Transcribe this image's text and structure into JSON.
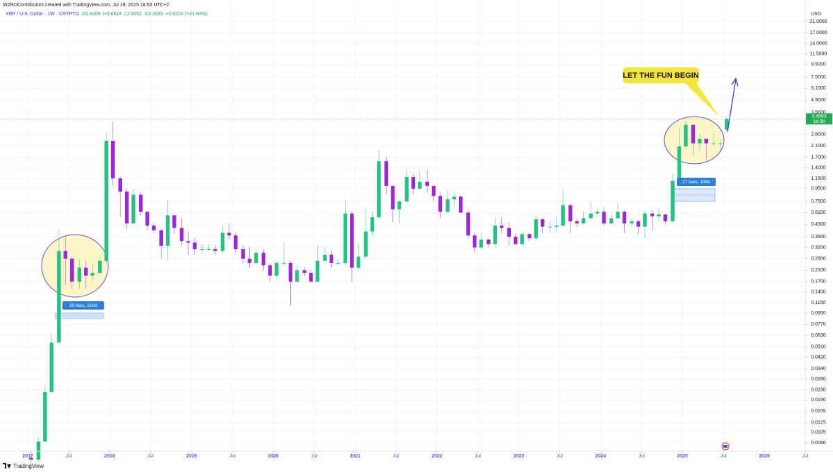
{
  "chart_data": {
    "type": "candlestick",
    "header": "WZRDContributors created with TradingView.com, Jul 19, 2025 18:50 UTC+2",
    "legend": {
      "symbol": "XRP / U.S. Dollar · 1W · CRYPTO",
      "values": [
        "O2.8369",
        "H3.6614",
        "L2.8052",
        "C3.4593",
        "+0.6224 (+21.94%)"
      ]
    },
    "colors": {
      "up": "#26c281",
      "down": "#9b27d8"
    },
    "log_scale": true,
    "grid": true,
    "y_axis_unit": "USD",
    "last_price": 3.4593,
    "countdown": "1d 8h",
    "callout": "LET THE FUN BEGIN",
    "ranges": [
      "30 bars, 210d",
      "27 bars, 189d"
    ],
    "footer": "TradingView",
    "xlim": [
      2016.66,
      2026.5
    ],
    "ylim": [
      0.00737,
      26.1
    ],
    "xticks": [
      2017,
      {
        "value": 2017.5,
        "label": "Jul"
      },
      2018,
      {
        "value": 2018.5,
        "label": "Jul"
      },
      2019,
      {
        "value": 2019.5,
        "label": "Jul"
      },
      2020,
      {
        "value": 2020.5,
        "label": "Jul"
      },
      2021,
      {
        "value": 2021.5,
        "label": "Jul"
      },
      2022,
      {
        "value": 2022.5,
        "label": "Jul"
      },
      2023,
      {
        "value": 2023.5,
        "label": "Jul"
      },
      2024,
      {
        "value": 2024.5,
        "label": "Jul"
      },
      2025,
      {
        "value": 2025.5,
        "label": "Jul"
      },
      2026,
      {
        "value": 2026.5,
        "label": "Jul"
      }
    ],
    "yticks": [
      {
        "value": 21,
        "label": "21.0000"
      },
      {
        "value": 17,
        "label": "17.0000"
      },
      {
        "value": 14,
        "label": "14.0000"
      },
      {
        "value": 11.5,
        "label": "11.5000"
      },
      {
        "value": 9.5,
        "label": "9.5000"
      },
      {
        "value": 7.5,
        "label": "7.5000"
      },
      {
        "value": 6.1,
        "label": "6.1000"
      },
      {
        "value": 4.9,
        "label": "4.9000"
      },
      {
        "value": 3.9,
        "label": "3.9000"
      },
      {
        "value": 2.6,
        "label": "2.6000"
      },
      {
        "value": 2.1,
        "label": "2.1000"
      },
      {
        "value": 1.7,
        "label": "1.7000"
      },
      {
        "value": 1.4,
        "label": "1.4000"
      },
      {
        "value": 1.15,
        "label": "1.1500"
      },
      {
        "value": 0.95,
        "label": "0.9500"
      },
      {
        "value": 0.75,
        "label": "0.7500"
      },
      {
        "value": 0.61,
        "label": "0.6100"
      },
      {
        "value": 0.49,
        "label": "0.4900"
      },
      {
        "value": 0.39,
        "label": "0.3900"
      },
      {
        "value": 0.32,
        "label": "0.3200"
      },
      {
        "value": 0.26,
        "label": "0.2600"
      },
      {
        "value": 0.21,
        "label": "0.2100"
      },
      {
        "value": 0.17,
        "label": "0.1700"
      },
      {
        "value": 0.14,
        "label": "0.1400"
      },
      {
        "value": 0.115,
        "label": "0.1150"
      },
      {
        "value": 0.095,
        "label": "0.0950"
      },
      {
        "value": 0.077,
        "label": "0.0770"
      },
      {
        "value": 0.063,
        "label": "0.0630"
      },
      {
        "value": 0.051,
        "label": "0.0510"
      },
      {
        "value": 0.042,
        "label": "0.0420"
      },
      {
        "value": 0.034,
        "label": "0.0340"
      },
      {
        "value": 0.028,
        "label": "0.0280"
      },
      {
        "value": 0.023,
        "label": "0.0230"
      },
      {
        "value": 0.019,
        "label": "0.0190"
      },
      {
        "value": 0.0155,
        "label": "0.0155"
      },
      {
        "value": 0.0125,
        "label": "0.0125"
      },
      {
        "value": 0.0105,
        "label": "0.0105"
      },
      {
        "value": 0.0086,
        "label": "0.0086"
      }
    ],
    "x": [
      2017.04,
      2017.13,
      2017.21,
      2017.29,
      2017.38,
      2017.46,
      2017.54,
      2017.63,
      2017.71,
      2017.79,
      2017.88,
      2017.96,
      2018.04,
      2018.13,
      2018.21,
      2018.29,
      2018.38,
      2018.46,
      2018.54,
      2018.63,
      2018.71,
      2018.79,
      2018.88,
      2018.96,
      2019.04,
      2019.13,
      2019.21,
      2019.29,
      2019.38,
      2019.46,
      2019.54,
      2019.63,
      2019.71,
      2019.79,
      2019.88,
      2019.96,
      2020.04,
      2020.13,
      2020.21,
      2020.29,
      2020.38,
      2020.46,
      2020.54,
      2020.63,
      2020.71,
      2020.79,
      2020.88,
      2020.96,
      2021.04,
      2021.13,
      2021.21,
      2021.29,
      2021.38,
      2021.46,
      2021.54,
      2021.63,
      2021.71,
      2021.79,
      2021.88,
      2021.96,
      2022.04,
      2022.13,
      2022.21,
      2022.29,
      2022.38,
      2022.46,
      2022.54,
      2022.63,
      2022.71,
      2022.79,
      2022.88,
      2022.96,
      2023.04,
      2023.13,
      2023.21,
      2023.29,
      2023.38,
      2023.46,
      2023.54,
      2023.63,
      2023.71,
      2023.79,
      2023.88,
      2023.96,
      2024.04,
      2024.13,
      2024.21,
      2024.29,
      2024.38,
      2024.46,
      2024.54,
      2024.63,
      2024.71,
      2024.79,
      2024.88,
      2024.96,
      2025.04,
      2025.13,
      2025.21,
      2025.29,
      2025.38,
      2025.46,
      2025.54
    ],
    "open": [
      0.0065,
      0.0063,
      0.0088,
      0.022,
      0.055,
      0.3,
      0.26,
      0.17,
      0.22,
      0.19,
      0.2,
      0.25,
      2.3,
      1.15,
      0.9,
      0.5,
      0.85,
      0.62,
      0.48,
      0.44,
      0.33,
      0.58,
      0.46,
      0.36,
      0.35,
      0.31,
      0.31,
      0.31,
      0.3,
      0.42,
      0.4,
      0.31,
      0.26,
      0.24,
      0.29,
      0.23,
      0.19,
      0.24,
      0.24,
      0.17,
      0.21,
      0.2,
      0.17,
      0.25,
      0.28,
      0.24,
      0.24,
      0.6,
      0.22,
      0.27,
      0.43,
      0.56,
      1.58,
      1.0,
      0.65,
      0.75,
      1.18,
      0.95,
      1.08,
      1.0,
      0.83,
      0.62,
      0.78,
      0.82,
      0.61,
      0.4,
      0.32,
      0.37,
      0.34,
      0.48,
      0.46,
      0.39,
      0.34,
      0.41,
      0.38,
      0.54,
      0.47,
      0.47,
      0.48,
      0.7,
      0.52,
      0.5,
      0.55,
      0.6,
      0.62,
      0.5,
      0.55,
      0.62,
      0.5,
      0.52,
      0.47,
      0.6,
      0.57,
      0.59,
      0.52,
      1.1,
      2.08,
      3.1,
      2.2,
      2.4,
      2.2,
      2.2,
      2.8369
    ],
    "high": [
      0.0075,
      0.0095,
      0.025,
      0.065,
      0.45,
      0.39,
      0.27,
      0.26,
      0.25,
      0.24,
      0.27,
      2.7,
      3.3,
      1.2,
      0.95,
      0.95,
      0.9,
      0.62,
      0.5,
      0.45,
      0.77,
      0.58,
      0.55,
      0.43,
      0.38,
      0.34,
      0.34,
      0.33,
      0.48,
      0.5,
      0.42,
      0.33,
      0.32,
      0.31,
      0.31,
      0.24,
      0.25,
      0.35,
      0.25,
      0.23,
      0.22,
      0.21,
      0.33,
      0.32,
      0.3,
      0.26,
      0.78,
      0.63,
      0.34,
      0.66,
      0.62,
      1.96,
      1.7,
      0.99,
      0.77,
      1.35,
      1.25,
      1.35,
      1.35,
      1.0,
      0.89,
      0.92,
      0.91,
      0.84,
      0.64,
      0.42,
      0.42,
      0.38,
      0.56,
      0.56,
      0.51,
      0.41,
      0.43,
      0.42,
      0.58,
      0.55,
      0.52,
      0.56,
      0.94,
      0.72,
      0.54,
      0.62,
      0.74,
      0.66,
      0.67,
      0.59,
      0.74,
      0.64,
      0.55,
      0.53,
      0.64,
      0.64,
      0.66,
      0.59,
      1.27,
      2.9,
      3.4,
      3.02,
      2.6,
      2.3,
      2.65,
      2.35,
      3.6614
    ],
    "low": [
      0.0052,
      0.006,
      0.0088,
      0.022,
      0.055,
      0.16,
      0.15,
      0.15,
      0.15,
      0.17,
      0.2,
      0.24,
      1.0,
      0.56,
      0.45,
      0.5,
      0.58,
      0.44,
      0.42,
      0.26,
      0.25,
      0.41,
      0.33,
      0.28,
      0.28,
      0.29,
      0.3,
      0.28,
      0.29,
      0.37,
      0.29,
      0.24,
      0.22,
      0.24,
      0.21,
      0.17,
      0.18,
      0.23,
      0.11,
      0.17,
      0.19,
      0.17,
      0.17,
      0.25,
      0.22,
      0.23,
      0.23,
      0.17,
      0.21,
      0.26,
      0.4,
      0.54,
      0.85,
      0.51,
      0.5,
      0.73,
      0.85,
      0.94,
      0.89,
      0.76,
      0.55,
      0.6,
      0.68,
      0.6,
      0.38,
      0.29,
      0.31,
      0.32,
      0.32,
      0.42,
      0.33,
      0.33,
      0.33,
      0.36,
      0.36,
      0.42,
      0.42,
      0.43,
      0.46,
      0.42,
      0.47,
      0.49,
      0.53,
      0.57,
      0.48,
      0.49,
      0.54,
      0.42,
      0.47,
      0.41,
      0.38,
      0.44,
      0.52,
      0.49,
      0.5,
      0.96,
      1.96,
      1.76,
      1.9,
      1.61,
      2.09,
      1.9,
      2.8052
    ],
    "close": [
      0.0063,
      0.0088,
      0.022,
      0.055,
      0.3,
      0.26,
      0.17,
      0.22,
      0.19,
      0.2,
      0.25,
      2.3,
      1.15,
      0.9,
      0.5,
      0.85,
      0.62,
      0.48,
      0.44,
      0.33,
      0.58,
      0.46,
      0.36,
      0.35,
      0.31,
      0.31,
      0.31,
      0.3,
      0.42,
      0.4,
      0.31,
      0.26,
      0.24,
      0.29,
      0.23,
      0.19,
      0.24,
      0.24,
      0.17,
      0.21,
      0.2,
      0.17,
      0.25,
      0.28,
      0.24,
      0.24,
      0.6,
      0.22,
      0.27,
      0.43,
      0.56,
      1.58,
      1.0,
      0.65,
      0.75,
      1.18,
      0.95,
      1.08,
      1.0,
      0.83,
      0.62,
      0.78,
      0.82,
      0.61,
      0.4,
      0.32,
      0.37,
      0.34,
      0.48,
      0.46,
      0.39,
      0.34,
      0.41,
      0.38,
      0.54,
      0.47,
      0.47,
      0.48,
      0.7,
      0.52,
      0.5,
      0.55,
      0.6,
      0.62,
      0.5,
      0.55,
      0.62,
      0.5,
      0.52,
      0.47,
      0.6,
      0.57,
      0.59,
      0.52,
      1.1,
      2.08,
      3.1,
      2.2,
      2.4,
      2.2,
      2.2,
      2.2,
      3.4593
    ]
  }
}
